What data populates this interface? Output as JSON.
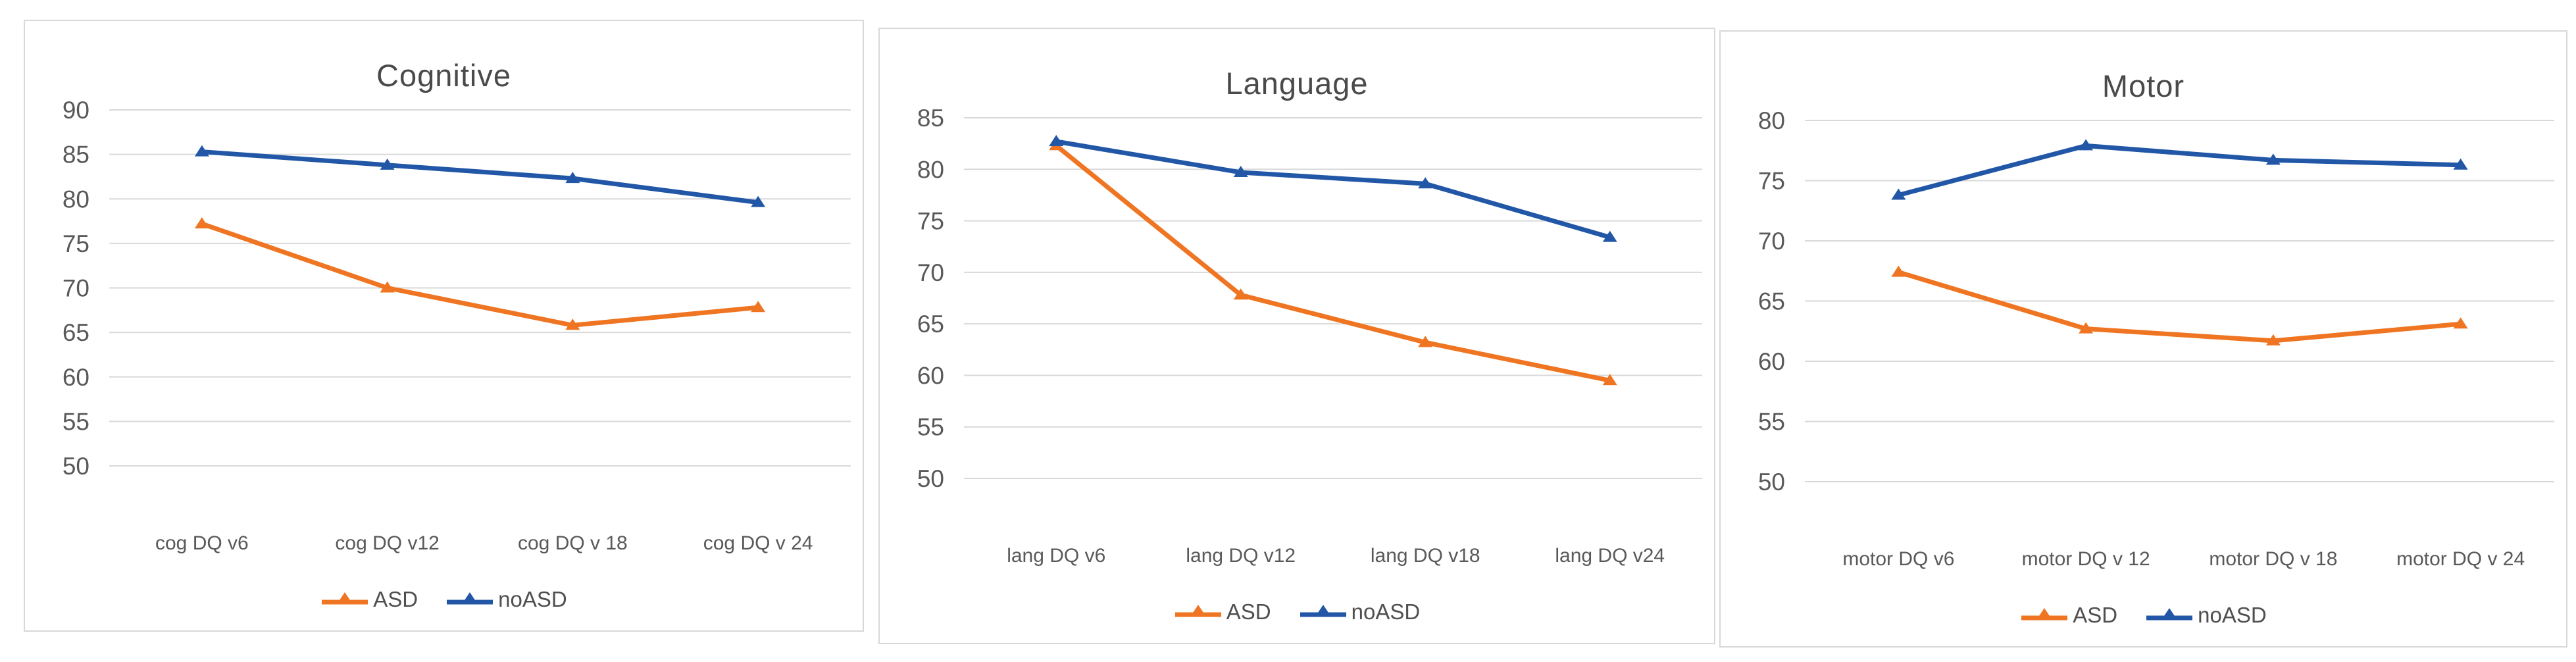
{
  "page": {
    "background": "#ffffff"
  },
  "colors": {
    "asd_series": "#EF7522",
    "noasd_series": "#2157A6",
    "gridline": "#D9D9D9",
    "axis_text": "#595959",
    "category_text": "#595959",
    "title_text": "#4A4A4A",
    "panel_border": "#D8D8D8"
  },
  "legend": {
    "asd_label": "ASD",
    "noasd_label": "noASD"
  },
  "chart_data": [
    {
      "type": "line",
      "title": "Cognitive",
      "categories": [
        "cog DQ v6",
        "cog DQ v12",
        "cog DQ v 18",
        "cog DQ v 24"
      ],
      "series": [
        {
          "name": "ASD",
          "color": "#EF7522",
          "marker": "triangle",
          "values": [
            77.2,
            70.0,
            65.8,
            67.8
          ]
        },
        {
          "name": "noASD",
          "color": "#2157A6",
          "marker": "triangle",
          "values": [
            85.3,
            83.8,
            82.3,
            79.6
          ]
        }
      ],
      "xlabel": "",
      "ylabel": "",
      "ylim": [
        50,
        90
      ],
      "ytick_step": 5,
      "yticks": [
        50,
        55,
        60,
        65,
        70,
        75,
        80,
        85,
        90
      ],
      "grid": true,
      "legend_position": "bottom"
    },
    {
      "type": "line",
      "title": "Language",
      "categories": [
        "lang DQ v6",
        "lang DQ v12",
        "lang DQ v18",
        "lang DQ v24"
      ],
      "series": [
        {
          "name": "ASD",
          "color": "#EF7522",
          "marker": "triangle",
          "values": [
            82.3,
            67.8,
            63.2,
            59.5
          ]
        },
        {
          "name": "noASD",
          "color": "#2157A6",
          "marker": "triangle",
          "values": [
            82.7,
            79.7,
            78.6,
            73.4
          ]
        }
      ],
      "xlabel": "",
      "ylabel": "",
      "ylim": [
        50,
        85
      ],
      "ytick_step": 5,
      "yticks": [
        50,
        55,
        60,
        65,
        70,
        75,
        80,
        85
      ],
      "grid": true,
      "legend_position": "bottom"
    },
    {
      "type": "line",
      "title": "Motor",
      "categories": [
        "motor DQ v6",
        "motor DQ v 12",
        "motor DQ v 18",
        "motor DQ v 24"
      ],
      "series": [
        {
          "name": "ASD",
          "color": "#EF7522",
          "marker": "triangle",
          "values": [
            67.4,
            62.7,
            61.7,
            63.1
          ]
        },
        {
          "name": "noASD",
          "color": "#2157A6",
          "marker": "triangle",
          "values": [
            73.8,
            77.9,
            76.7,
            76.3
          ]
        }
      ],
      "xlabel": "",
      "ylabel": "",
      "ylim": [
        50,
        80
      ],
      "ytick_step": 5,
      "yticks": [
        50,
        55,
        60,
        65,
        70,
        75,
        80
      ],
      "grid": true,
      "legend_position": "bottom"
    }
  ]
}
